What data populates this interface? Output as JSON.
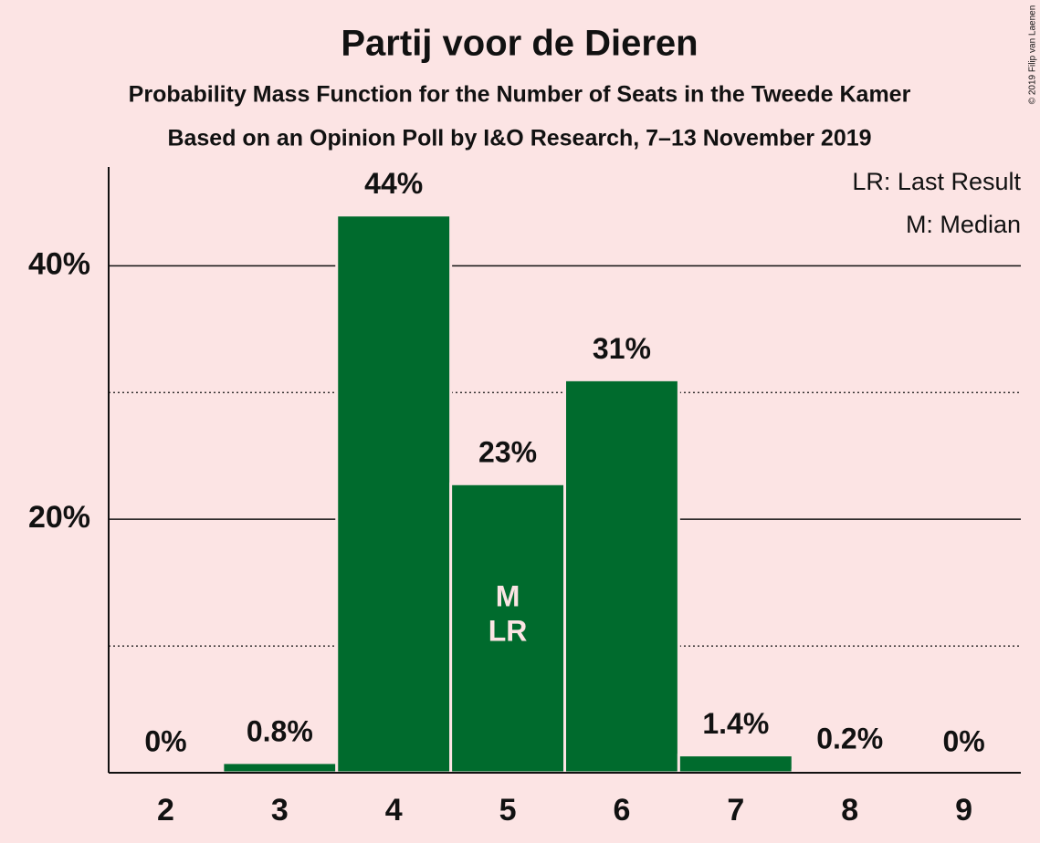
{
  "chart_data": {
    "type": "bar",
    "title": "Partij voor de Dieren",
    "subtitle": "Probability Mass Function for the Number of Seats in the Tweede Kamer",
    "subtitle2": "Based on an Opinion Poll by I&O Research, 7–13 November 2019",
    "credit": "© 2019 Filip van Laenen",
    "categories": [
      "2",
      "3",
      "4",
      "5",
      "6",
      "7",
      "8",
      "9"
    ],
    "values": [
      0,
      0.8,
      44,
      22.8,
      31,
      1.4,
      0.2,
      0
    ],
    "value_labels": [
      "0%",
      "0.8%",
      "44%",
      "23%",
      "31%",
      "1.4%",
      "0.2%",
      "0%"
    ],
    "color": "#006b2d",
    "ylim": [
      0,
      47.8
    ],
    "yticks": [
      {
        "value": 20,
        "label": "20%"
      },
      {
        "value": 40,
        "label": "40%"
      }
    ],
    "minor_yticks": [
      10,
      30
    ],
    "grid": true,
    "annotations": [
      {
        "text": "M",
        "at": "5"
      },
      {
        "text": "LR",
        "at": "5"
      }
    ],
    "legend": [
      "LR: Last Result",
      "M: Median"
    ]
  }
}
